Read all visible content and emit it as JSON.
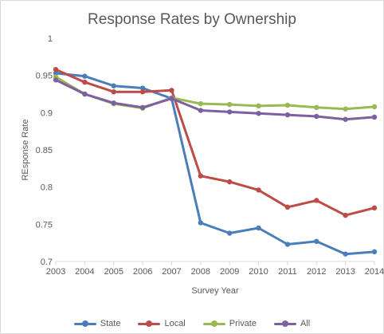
{
  "chart_data": {
    "type": "line",
    "title": "Response Rates by Ownership",
    "xlabel": "Survey Year",
    "ylabel": "REsponse Rate",
    "categories": [
      "2003",
      "2004",
      "2005",
      "2006",
      "2007",
      "2008",
      "2009",
      "2010",
      "2011",
      "2012",
      "2013",
      "2014"
    ],
    "ylim": [
      0.7,
      1.0
    ],
    "yticks": [
      "0.7",
      "0.75",
      "0.8",
      "0.85",
      "0.9",
      "0.95",
      "1"
    ],
    "grid": false,
    "legend_position": "bottom",
    "series": [
      {
        "name": "State",
        "color": "#4a7ebb",
        "values": [
          0.953,
          0.949,
          0.936,
          0.933,
          0.919,
          0.752,
          0.738,
          0.745,
          0.723,
          0.727,
          0.71,
          0.713
        ]
      },
      {
        "name": "Local",
        "color": "#be4b48",
        "values": [
          0.958,
          0.941,
          0.928,
          0.928,
          0.93,
          0.815,
          0.807,
          0.796,
          0.773,
          0.782,
          0.762,
          0.772
        ]
      },
      {
        "name": "Private",
        "color": "#98b954",
        "values": [
          0.948,
          0.925,
          0.912,
          0.906,
          0.92,
          0.912,
          0.911,
          0.909,
          0.91,
          0.907,
          0.905,
          0.908
        ]
      },
      {
        "name": "All",
        "color": "#7d60a0",
        "values": [
          0.944,
          0.925,
          0.913,
          0.907,
          0.919,
          0.903,
          0.901,
          0.899,
          0.897,
          0.895,
          0.891,
          0.894
        ]
      }
    ]
  }
}
